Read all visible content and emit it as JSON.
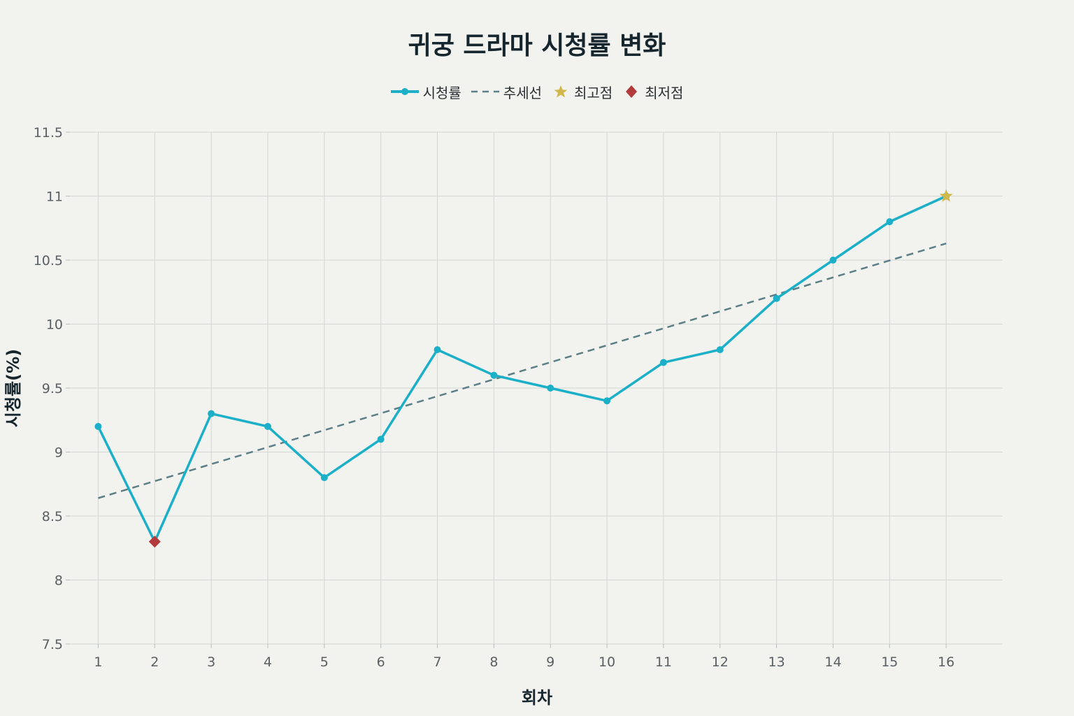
{
  "chart_data": {
    "type": "line",
    "title": "귀궁 드라마 시청률 변화",
    "xlabel": "회차",
    "ylabel": "시청률(%)",
    "x": [
      1,
      2,
      3,
      4,
      5,
      6,
      7,
      8,
      9,
      10,
      11,
      12,
      13,
      14,
      15,
      16
    ],
    "x_tick_labels": [
      "1",
      "2",
      "3",
      "4",
      "5",
      "6",
      "7",
      "8",
      "9",
      "10",
      "11",
      "12",
      "13",
      "14",
      "15",
      "16"
    ],
    "y_ticks": [
      7.5,
      8,
      8.5,
      9,
      9.5,
      10,
      10.5,
      11,
      11.5
    ],
    "y_tick_labels": [
      "7.5",
      "8",
      "8.5",
      "9",
      "9.5",
      "10",
      "10.5",
      "11",
      "11.5"
    ],
    "ylim": [
      7.5,
      11.5
    ],
    "xlim": [
      0.5,
      17
    ],
    "grid": true,
    "legend_position": "top-center",
    "series": [
      {
        "name": "시청률",
        "kind": "line-markers",
        "color": "#1cb0c8",
        "values": [
          9.2,
          8.3,
          9.3,
          9.2,
          8.8,
          9.1,
          9.8,
          9.6,
          9.5,
          9.4,
          9.7,
          9.8,
          10.2,
          10.5,
          10.8,
          11.0
        ]
      },
      {
        "name": "추세선",
        "kind": "dashed-line",
        "color": "#5a7f86",
        "x": [
          1,
          16
        ],
        "values": [
          8.64,
          10.63
        ]
      },
      {
        "name": "최고점",
        "kind": "star-marker",
        "color": "#d2b84a",
        "x": [
          16
        ],
        "values": [
          11.0
        ]
      },
      {
        "name": "최저점",
        "kind": "diamond-marker",
        "color": "#b23a3a",
        "x": [
          2
        ],
        "values": [
          8.3
        ]
      }
    ]
  }
}
